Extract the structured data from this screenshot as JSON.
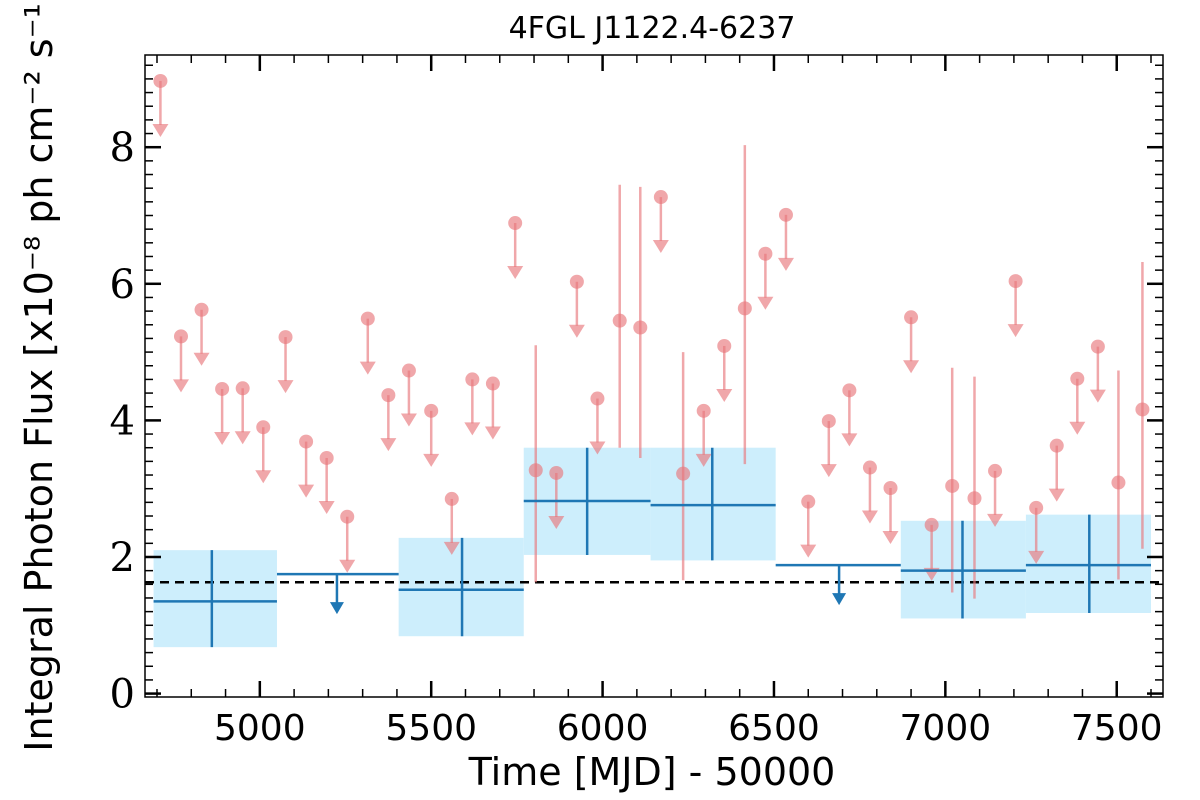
{
  "chart_data": {
    "type": "scatter",
    "title": "4FGL J1122.4-6237",
    "xlabel": "Time [MJD] - 50000",
    "ylabel": "Integral Photon Flux [x10⁻⁸ ph cm⁻² s⁻¹]",
    "xlim": [
      4665,
      7635
    ],
    "ylim": [
      -0.05,
      9.35
    ],
    "xticks": [
      5000,
      5500,
      6000,
      6500,
      7000,
      7500
    ],
    "xtick_labels": [
      "5000",
      "5500",
      "6000",
      "6500",
      "7000",
      "7500"
    ],
    "yticks": [
      0,
      2,
      4,
      6,
      8
    ],
    "ytick_labels": [
      "0",
      "2",
      "4",
      "6",
      "8"
    ],
    "grid": false,
    "reference_line": {
      "y": 1.63,
      "style": "dashed",
      "color": "#000000"
    },
    "colors": {
      "fine": "#e8787d",
      "coarse": "#1f77b4",
      "band": "#cdeefc"
    },
    "series": [
      {
        "kind": "coarse_bins",
        "bins": [
          {
            "x": 4860,
            "xlo": 4690,
            "xhi": 5050,
            "y": 1.35,
            "ylo": 0.68,
            "yhi": 2.1,
            "upper_limit": false
          },
          {
            "x": 5225,
            "xlo": 5050,
            "xhi": 5405,
            "y": 1.75,
            "upper_limit": true
          },
          {
            "x": 5590,
            "xlo": 5405,
            "xhi": 5770,
            "y": 1.52,
            "ylo": 0.84,
            "yhi": 2.28,
            "upper_limit": false
          },
          {
            "x": 5955,
            "xlo": 5770,
            "xhi": 6140,
            "y": 2.82,
            "ylo": 2.03,
            "yhi": 3.6,
            "upper_limit": false
          },
          {
            "x": 6320,
            "xlo": 6140,
            "xhi": 6505,
            "y": 2.76,
            "ylo": 1.95,
            "yhi": 3.6,
            "upper_limit": false
          },
          {
            "x": 6690,
            "xlo": 6505,
            "xhi": 6870,
            "y": 1.88,
            "upper_limit": true
          },
          {
            "x": 7050,
            "xlo": 6870,
            "xhi": 7235,
            "y": 1.8,
            "ylo": 1.1,
            "yhi": 2.53,
            "upper_limit": false
          },
          {
            "x": 7420,
            "xlo": 7235,
            "xhi": 7600,
            "y": 1.88,
            "ylo": 1.18,
            "yhi": 2.62,
            "upper_limit": false
          }
        ]
      },
      {
        "kind": "fine_bins",
        "points": [
          {
            "x": 4710,
            "y": 8.97,
            "upper_limit": true
          },
          {
            "x": 4770,
            "y": 5.23,
            "upper_limit": true
          },
          {
            "x": 4830,
            "y": 5.62,
            "upper_limit": true
          },
          {
            "x": 4890,
            "y": 4.46,
            "upper_limit": true
          },
          {
            "x": 4950,
            "y": 4.47,
            "upper_limit": true
          },
          {
            "x": 5010,
            "y": 3.9,
            "upper_limit": true
          },
          {
            "x": 5075,
            "y": 5.22,
            "upper_limit": true
          },
          {
            "x": 5135,
            "y": 3.69,
            "upper_limit": true
          },
          {
            "x": 5195,
            "y": 3.45,
            "upper_limit": true
          },
          {
            "x": 5255,
            "y": 2.59,
            "upper_limit": true
          },
          {
            "x": 5315,
            "y": 5.49,
            "upper_limit": true
          },
          {
            "x": 5375,
            "y": 4.37,
            "upper_limit": true
          },
          {
            "x": 5435,
            "y": 4.73,
            "upper_limit": true
          },
          {
            "x": 5500,
            "y": 4.14,
            "upper_limit": true
          },
          {
            "x": 5560,
            "y": 2.85,
            "upper_limit": true
          },
          {
            "x": 5620,
            "y": 4.6,
            "upper_limit": true
          },
          {
            "x": 5680,
            "y": 4.54,
            "upper_limit": true
          },
          {
            "x": 5745,
            "y": 6.89,
            "upper_limit": true
          },
          {
            "x": 5805,
            "y": 3.27,
            "ylo": 1.63,
            "yhi": 5.1,
            "upper_limit": false
          },
          {
            "x": 5865,
            "y": 3.23,
            "upper_limit": true
          },
          {
            "x": 5925,
            "y": 6.03,
            "upper_limit": true
          },
          {
            "x": 5985,
            "y": 4.32,
            "upper_limit": true
          },
          {
            "x": 6050,
            "y": 5.46,
            "ylo": 3.6,
            "yhi": 7.45,
            "upper_limit": false
          },
          {
            "x": 6110,
            "y": 5.36,
            "ylo": 3.45,
            "yhi": 7.42,
            "upper_limit": false
          },
          {
            "x": 6170,
            "y": 7.27,
            "upper_limit": true
          },
          {
            "x": 6235,
            "y": 3.22,
            "ylo": 1.66,
            "yhi": 5.0,
            "upper_limit": false
          },
          {
            "x": 6295,
            "y": 4.14,
            "upper_limit": true
          },
          {
            "x": 6355,
            "y": 5.09,
            "upper_limit": true
          },
          {
            "x": 6415,
            "y": 5.64,
            "ylo": 3.36,
            "yhi": 8.03,
            "upper_limit": false
          },
          {
            "x": 6475,
            "y": 6.44,
            "upper_limit": true
          },
          {
            "x": 6535,
            "y": 7.01,
            "upper_limit": true
          },
          {
            "x": 6600,
            "y": 2.81,
            "upper_limit": true
          },
          {
            "x": 6660,
            "y": 3.99,
            "upper_limit": true
          },
          {
            "x": 6720,
            "y": 4.44,
            "upper_limit": true
          },
          {
            "x": 6780,
            "y": 3.31,
            "upper_limit": true
          },
          {
            "x": 6840,
            "y": 3.01,
            "upper_limit": true
          },
          {
            "x": 6900,
            "y": 5.51,
            "upper_limit": true
          },
          {
            "x": 6960,
            "y": 2.47,
            "upper_limit": true
          },
          {
            "x": 7020,
            "y": 3.04,
            "ylo": 1.48,
            "yhi": 4.77,
            "upper_limit": false
          },
          {
            "x": 7085,
            "y": 2.86,
            "ylo": 1.39,
            "yhi": 4.64,
            "upper_limit": false
          },
          {
            "x": 7145,
            "y": 3.26,
            "upper_limit": true
          },
          {
            "x": 7205,
            "y": 6.04,
            "upper_limit": true
          },
          {
            "x": 7265,
            "y": 2.72,
            "upper_limit": true
          },
          {
            "x": 7325,
            "y": 3.63,
            "upper_limit": true
          },
          {
            "x": 7385,
            "y": 4.61,
            "upper_limit": true
          },
          {
            "x": 7445,
            "y": 5.08,
            "upper_limit": true
          },
          {
            "x": 7505,
            "y": 3.09,
            "ylo": 1.67,
            "yhi": 4.73,
            "upper_limit": false
          },
          {
            "x": 7575,
            "y": 4.16,
            "ylo": 2.12,
            "yhi": 6.32,
            "upper_limit": false
          }
        ]
      }
    ]
  }
}
